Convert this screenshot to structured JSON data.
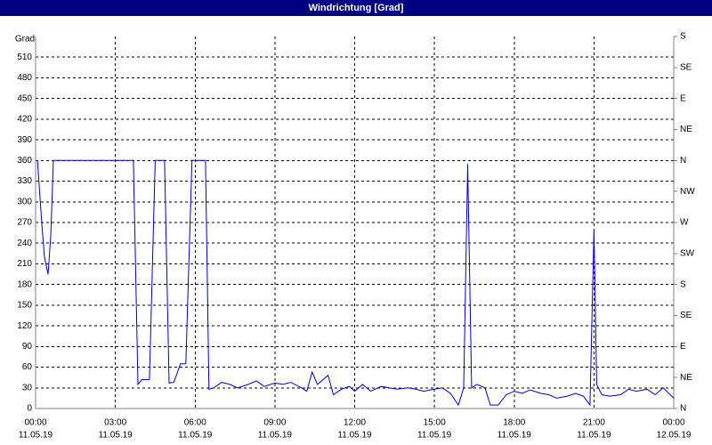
{
  "chart_data": {
    "type": "line",
    "title": "Windrichtung [Grad]",
    "y_label": "Grad",
    "xlim": [
      0,
      24
    ],
    "xticks": [
      {
        "value": 0,
        "label": "00:00",
        "date": "11.05.19"
      },
      {
        "value": 3,
        "label": "03:00",
        "date": "11.05.19"
      },
      {
        "value": 6,
        "label": "06:00",
        "date": "11.05.19"
      },
      {
        "value": 9,
        "label": "09:00",
        "date": "11.05.19"
      },
      {
        "value": 12,
        "label": "12:00",
        "date": "11.05.19"
      },
      {
        "value": 15,
        "label": "15:00",
        "date": "11.05.19"
      },
      {
        "value": 18,
        "label": "18:00",
        "date": "11.05.19"
      },
      {
        "value": 21,
        "label": "21:00",
        "date": "11.05.19"
      },
      {
        "value": 24,
        "label": "00:00",
        "date": "12.05.19"
      }
    ],
    "ylim": [
      0,
      540
    ],
    "yticks": [
      0,
      30,
      60,
      90,
      120,
      150,
      180,
      210,
      240,
      270,
      300,
      330,
      360,
      390,
      420,
      450,
      480,
      510
    ],
    "y2lim": [
      0,
      540
    ],
    "y2ticks": [
      {
        "value": 0,
        "label": "N"
      },
      {
        "value": 45,
        "label": "NE"
      },
      {
        "value": 90,
        "label": "E"
      },
      {
        "value": 135,
        "label": "SE"
      },
      {
        "value": 180,
        "label": "S"
      },
      {
        "value": 225,
        "label": "SW"
      },
      {
        "value": 270,
        "label": "W"
      },
      {
        "value": 315,
        "label": "NW"
      },
      {
        "value": 360,
        "label": "N"
      },
      {
        "value": 405,
        "label": "NE"
      },
      {
        "value": 450,
        "label": "E"
      },
      {
        "value": 495,
        "label": "SE"
      },
      {
        "value": 540,
        "label": "S"
      }
    ],
    "grid": true,
    "series": [
      {
        "color": "#0000cc",
        "x": [
          0.07,
          0.23,
          0.33,
          0.47,
          0.57,
          0.67,
          3.68,
          3.85,
          4.0,
          4.28,
          4.5,
          4.85,
          5.02,
          5.2,
          5.45,
          5.65,
          5.88,
          6.39,
          6.52,
          6.7,
          7.0,
          7.3,
          7.6,
          8.0,
          8.3,
          8.6,
          9.0,
          9.3,
          9.6,
          10.0,
          10.2,
          10.4,
          10.6,
          11.0,
          11.2,
          11.5,
          11.8,
          12.0,
          12.3,
          12.6,
          13.0,
          13.3,
          13.6,
          14.0,
          14.3,
          14.6,
          15.0,
          15.3,
          15.6,
          15.9,
          16.1,
          16.25,
          16.4,
          16.6,
          16.9,
          17.1,
          17.4,
          17.7,
          18.0,
          18.3,
          18.6,
          19.0,
          19.3,
          19.6,
          20.0,
          20.3,
          20.6,
          20.85,
          21.0,
          21.1,
          21.3,
          21.6,
          22.0,
          22.3,
          22.6,
          23.0,
          23.3,
          23.6,
          24.0
        ],
        "values": [
          360,
          270,
          220,
          195,
          250,
          360,
          360,
          35,
          42,
          42,
          360,
          360,
          37,
          38,
          65,
          65,
          360,
          360,
          28,
          30,
          38,
          35,
          30,
          35,
          40,
          32,
          37,
          35,
          38,
          30,
          25,
          53,
          35,
          48,
          20,
          28,
          32,
          25,
          35,
          25,
          32,
          30,
          28,
          30,
          28,
          25,
          28,
          30,
          22,
          5,
          30,
          355,
          30,
          35,
          30,
          5,
          5,
          20,
          25,
          22,
          27,
          22,
          20,
          15,
          18,
          22,
          18,
          5,
          260,
          35,
          20,
          18,
          20,
          28,
          25,
          28,
          20,
          30,
          15
        ]
      }
    ]
  }
}
